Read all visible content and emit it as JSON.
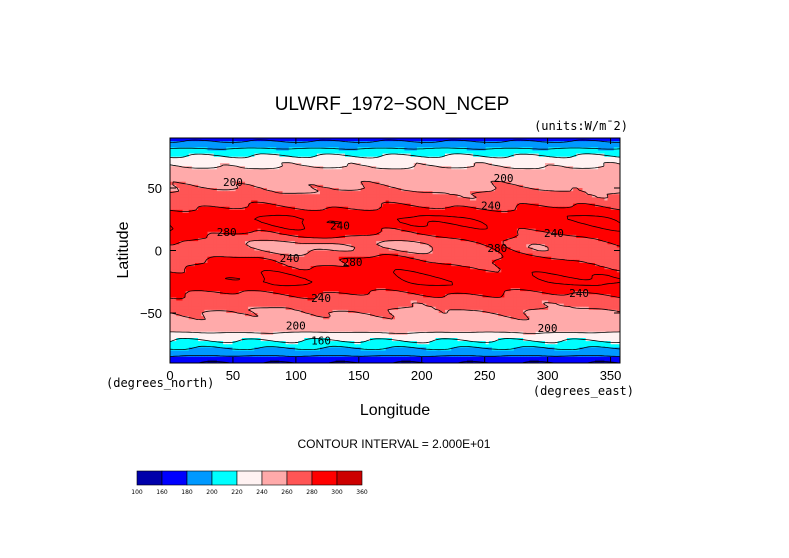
{
  "chart_data": {
    "type": "heatmap",
    "title": "ULWRF_1972−SON_NCEP",
    "units_note": "(units:W/m¯2)",
    "xlabel": "Longitude",
    "ylabel": "Latitude",
    "x_unit_note": "(degrees_east)",
    "y_unit_note": "(degrees_north)",
    "xlim": [
      0,
      357.5
    ],
    "ylim": [
      -90,
      90
    ],
    "x_ticks": [
      0,
      50,
      100,
      150,
      200,
      250,
      300,
      350
    ],
    "y_ticks": [
      50,
      0,
      -50
    ],
    "y_tick_labels": [
      "50",
      "0",
      "−50"
    ],
    "contour_interval_text": "CONTOUR INTERVAL = 2.000E+01",
    "contour_labels": [
      {
        "text": "200",
        "lon": 50,
        "lat": 55
      },
      {
        "text": "200",
        "lon": 265,
        "lat": 58
      },
      {
        "text": "240",
        "lon": 255,
        "lat": 36
      },
      {
        "text": "240",
        "lon": 135,
        "lat": 20
      },
      {
        "text": "240",
        "lon": 305,
        "lat": 14
      },
      {
        "text": "280",
        "lon": 45,
        "lat": 15
      },
      {
        "text": "280",
        "lon": 260,
        "lat": 2
      },
      {
        "text": "240",
        "lon": 95,
        "lat": -6
      },
      {
        "text": "280",
        "lon": 145,
        "lat": -9
      },
      {
        "text": "240",
        "lon": 120,
        "lat": -38
      },
      {
        "text": "240",
        "lon": 325,
        "lat": -34
      },
      {
        "text": "200",
        "lon": 100,
        "lat": -60
      },
      {
        "text": "200",
        "lon": 300,
        "lat": -62
      },
      {
        "text": "160",
        "lon": 120,
        "lat": -72
      }
    ],
    "colorbar": {
      "levels": [
        100,
        160,
        180,
        200,
        220,
        240,
        260,
        280,
        300,
        360
      ],
      "labels": [
        "100",
        "160",
        "180",
        "200",
        "220",
        "240",
        "260",
        "280",
        "300",
        "360"
      ],
      "colors": [
        "#0000aa",
        "#0000ff",
        "#0099ff",
        "#00ffff",
        "#fff2f2",
        "#ffaaaa",
        "#ff5555",
        "#ff0000",
        "#cc0000"
      ]
    }
  },
  "colors": {
    "band_colors": [
      "#0000aa",
      "#0000ff",
      "#0099ff",
      "#00ffff",
      "#fff2f2",
      "#ffaaaa",
      "#ff5555",
      "#ff0000"
    ]
  }
}
